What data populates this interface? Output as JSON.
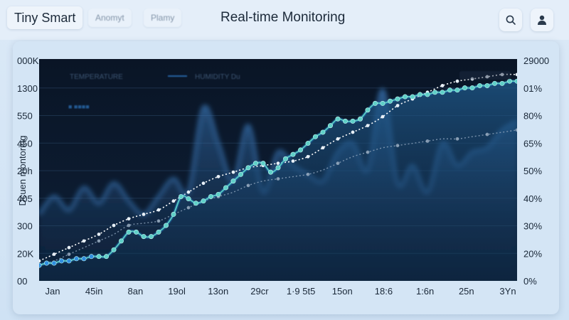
{
  "header": {
    "brand": "Tiny Smart",
    "nav": [
      "Anomyt",
      "Plamy"
    ],
    "title": "Real-time Monitoring",
    "icons": [
      "search-icon",
      "user-icon"
    ]
  },
  "chart_data": {
    "type": "line",
    "title": "",
    "ylabel": "Dcuen montoring",
    "x_ticks": [
      "Jan",
      "45in",
      "8an",
      "19ol",
      "13on",
      "29cr",
      "1·9 5t5",
      "15on",
      "18:6",
      "1:6n",
      "25n",
      "3Yn"
    ],
    "y_left_ticks": [
      "000K",
      "1300",
      "550",
      "450",
      "20h",
      "405",
      "300",
      "20K",
      "00"
    ],
    "y_right_ticks": [
      "29000",
      "01%",
      "80%",
      "65%",
      "50%",
      "40%",
      "30%",
      "20%",
      "0%"
    ],
    "legend": [
      {
        "label": "TEMPERATURE",
        "marker": "none"
      },
      {
        "label": "HUMIDITY Du",
        "marker": "line"
      }
    ],
    "legend_blurred_text": "■ ■■■■",
    "ylim": [
      0,
      100
    ],
    "grid": true,
    "series": [
      {
        "style": "solid-teal",
        "color": "#56c7c2",
        "x": [
          0,
          0.5,
          1,
          1.5,
          2,
          2.5,
          3,
          3.5,
          4,
          4.5,
          5,
          5.5,
          6,
          6.5,
          7,
          7.5,
          8,
          8.5,
          9,
          9.5,
          10,
          10.5,
          11,
          11.5,
          12,
          12.5,
          13,
          13.5,
          14,
          14.5,
          15,
          15.5,
          16,
          16.5,
          17,
          17.5,
          18,
          18.5,
          19,
          19.5,
          20,
          20.5,
          21,
          21.5,
          22,
          22.5,
          23,
          23.5,
          24,
          24.5,
          25,
          25.5,
          26,
          26.5,
          27,
          27.5,
          28,
          28.5,
          29,
          29.5,
          30,
          30.5,
          31,
          31.5,
          32
        ],
        "values": [
          7,
          8,
          8,
          9,
          9,
          10,
          10,
          11,
          11,
          11,
          14,
          18,
          22,
          22,
          20,
          20,
          22,
          25,
          30,
          38,
          37,
          35,
          36,
          38,
          39,
          42,
          45,
          48,
          51,
          53,
          53,
          49,
          51,
          55,
          57,
          59,
          62,
          65,
          67,
          70,
          73,
          72,
          72,
          73,
          77,
          80,
          80,
          81,
          82,
          83,
          83,
          84,
          84,
          85,
          85,
          86,
          86,
          87,
          87,
          88,
          88,
          89,
          89,
          90,
          90
        ]
      },
      {
        "style": "dotted-white",
        "color": "#ffffff",
        "x": [
          0,
          1,
          2,
          3,
          4,
          5,
          6,
          7,
          8,
          9,
          10,
          11,
          12,
          13,
          14,
          15,
          16,
          17,
          18,
          19,
          20,
          21,
          22,
          23,
          24,
          25,
          26,
          27,
          28,
          29,
          30,
          31,
          32
        ],
        "values": [
          9,
          12,
          15,
          18,
          21,
          25,
          28,
          30,
          32,
          36,
          40,
          44,
          47,
          49,
          51,
          52,
          53,
          54,
          56,
          60,
          64,
          67,
          70,
          74,
          79,
          82,
          85,
          88,
          90,
          91,
          92,
          93,
          93
        ]
      },
      {
        "style": "dotted-grey",
        "color": "#8aa0b8",
        "x": [
          0,
          1,
          2,
          3,
          4,
          5,
          6,
          7,
          8,
          9,
          10,
          11,
          12,
          13,
          14,
          15,
          16,
          17,
          18,
          19,
          20,
          21,
          22,
          23,
          24,
          25,
          26,
          27,
          28,
          29,
          30,
          31,
          32
        ],
        "values": [
          7,
          9,
          12,
          15,
          18,
          21,
          25,
          26,
          27,
          30,
          33,
          36,
          38,
          40,
          43,
          45,
          46,
          47,
          48,
          50,
          53,
          56,
          58,
          60,
          61,
          62,
          63,
          64,
          64,
          65,
          66,
          67,
          68
        ]
      },
      {
        "style": "glow-band",
        "color": "#3a78b8",
        "x": [
          0,
          1,
          2,
          3,
          4,
          5,
          6,
          7,
          8,
          9,
          10,
          11,
          12,
          13,
          14,
          15,
          16,
          17,
          18,
          19,
          20,
          21,
          22,
          23,
          24,
          25,
          26,
          27,
          28,
          29,
          30,
          31,
          32
        ],
        "values": [
          30,
          38,
          32,
          42,
          35,
          44,
          36,
          30,
          38,
          46,
          40,
          78,
          62,
          45,
          70,
          40,
          58,
          52,
          48,
          45,
          58,
          62,
          50,
          86,
          44,
          52,
          40,
          62,
          52,
          58,
          60,
          68,
          72
        ]
      }
    ]
  }
}
